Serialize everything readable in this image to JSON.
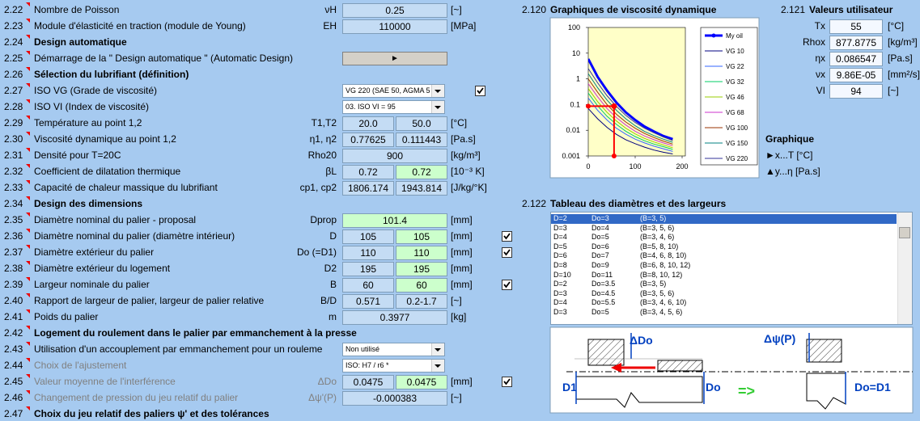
{
  "form": {
    "rows": [
      {
        "num": "2.22",
        "label": "Nombre de Poisson",
        "symbol": "νH",
        "values": [
          "0.25"
        ],
        "unit": "[~]"
      },
      {
        "num": "2.23",
        "label": "Module d'élasticité en traction (module de Young)",
        "symbol": "EH",
        "values": [
          "110000"
        ],
        "unit": "[MPa]"
      },
      {
        "num": "2.24",
        "label": "Design automatique",
        "bold": true
      },
      {
        "num": "2.25",
        "label": "Démarrage de la \" Design automatique \" (Automatic Design)",
        "button": "►"
      },
      {
        "num": "2.26",
        "label": "Sélection du lubrifiant (définition)",
        "bold": true
      },
      {
        "num": "2.27",
        "label": "ISO VG (Grade de viscosité)",
        "dropdown": "VG 220 (SAE 50, AGMA 5",
        "checked": true
      },
      {
        "num": "2.28",
        "label": "ISO VI (Index de viscosité)",
        "dropdown": "03. ISO VI = 95"
      },
      {
        "num": "2.29",
        "label": "Température au point 1,2",
        "symbol": "T1,T2",
        "values": [
          "20.0",
          "50.0"
        ],
        "unit": "[°C]"
      },
      {
        "num": "2.30",
        "label": "Viscosité dynamique au point 1,2",
        "symbol": "η1, η2",
        "values": [
          "0.77625",
          "0.111443"
        ],
        "unit": "[Pa.s]"
      },
      {
        "num": "2.31",
        "label": "Densité pour T=20C",
        "symbol": "Rho20",
        "values": [
          "900"
        ],
        "unit": "[kg/m³]"
      },
      {
        "num": "2.32",
        "label": "Coefficient de dilatation thermique",
        "symbol": "βL",
        "values": [
          "0.72",
          "0.72"
        ],
        "input_cells": [
          1
        ],
        "unit": "[10⁻³ K]"
      },
      {
        "num": "2.33",
        "label": "Capacité de chaleur massique du lubrifiant",
        "symbol": "cp1, cp2",
        "values": [
          "1806.174",
          "1943.814"
        ],
        "unit": "[J/kg/°K]"
      },
      {
        "num": "2.34",
        "label": "Design des dimensions",
        "bold": true
      },
      {
        "num": "2.35",
        "label": "Diamètre nominal du palier - proposal",
        "symbol": "Dprop",
        "values": [
          "101.4"
        ],
        "input_cells": [
          0
        ],
        "unit": "[mm]"
      },
      {
        "num": "2.36",
        "label": "Diamètre nominal du palier (diamètre intérieur)",
        "symbol": "D",
        "values": [
          "105",
          "105"
        ],
        "input_cells": [
          1
        ],
        "unit": "[mm]",
        "checked": true
      },
      {
        "num": "2.37",
        "label": "Diamètre extérieur du palier",
        "symbol": "Do (=D1)",
        "values": [
          "110",
          "110"
        ],
        "input_cells": [
          1
        ],
        "unit": "[mm]",
        "checked": true
      },
      {
        "num": "2.38",
        "label": "Diamètre extérieur du logement",
        "symbol": "D2",
        "values": [
          "195",
          "195"
        ],
        "input_cells": [
          1
        ],
        "unit": "[mm]"
      },
      {
        "num": "2.39",
        "label": "Largeur nominale du palier",
        "symbol": "B",
        "values": [
          "60",
          "60"
        ],
        "input_cells": [
          1
        ],
        "unit": "[mm]",
        "checked": true
      },
      {
        "num": "2.40",
        "label": "Rapport de largeur de palier, largeur de palier relative",
        "symbol": "B/D",
        "values": [
          "0.571",
          "0.2-1.7"
        ],
        "unit": "[~]"
      },
      {
        "num": "2.41",
        "label": "Poids du palier",
        "symbol": "m",
        "values": [
          "0.3977"
        ],
        "unit": "[kg]"
      },
      {
        "num": "2.42",
        "label": "Logement du roulement dans le palier par emmanchement à la presse",
        "bold": true
      },
      {
        "num": "2.43",
        "label": "Utilisation d'un accouplement par emmanchement pour un rouleme",
        "dropdown": "Non utilisé"
      },
      {
        "num": "2.44",
        "label": "Choix de l'ajustement",
        "disabled": true,
        "dropdown": "ISO: H7 / r6 *"
      },
      {
        "num": "2.45",
        "label": "Valeur moyenne de l'interférence",
        "disabled": true,
        "symbol": "ΔDo",
        "values": [
          "0.0475",
          "0.0475"
        ],
        "input_cells": [
          1
        ],
        "unit": "[mm]",
        "checked": true
      },
      {
        "num": "2.46",
        "label": "Changement de pression du jeu relatif du palier",
        "disabled": true,
        "symbol": "Δψ'(P)",
        "values": [
          "-0.000383"
        ],
        "unit": "[~]"
      },
      {
        "num": "2.47",
        "label": "Choix du jeu relatif des paliers ψ' et des tolérances",
        "bold": true
      }
    ]
  },
  "chart_data": {
    "type": "line",
    "num": "2.120",
    "title": "Graphiques de viscosité dynamique",
    "log_y": true,
    "x": [
      0,
      20,
      40,
      60,
      80,
      100,
      120,
      140,
      160,
      180
    ],
    "xlim": [
      0,
      200
    ],
    "xticks": [
      0,
      100,
      200
    ],
    "ylim": [
      0.001,
      100
    ],
    "yticks": [
      100,
      10,
      1,
      0.1,
      0.01,
      0.001
    ],
    "series": [
      {
        "name": "My oil",
        "color": "#0000ff",
        "values": [
          6,
          1.2,
          0.35,
          0.12,
          0.05,
          0.025,
          0.014,
          0.009,
          0.006,
          0.0045
        ]
      },
      {
        "name": "VG 10",
        "color": "#000080",
        "values": [
          0.07,
          0.028,
          0.013,
          0.0069,
          0.0043,
          0.003,
          0.0022,
          0.0017,
          0.0014,
          0.0012
        ]
      },
      {
        "name": "VG 22",
        "color": "#3366ff",
        "values": [
          0.18,
          0.06,
          0.025,
          0.012,
          0.007,
          0.0045,
          0.0032,
          0.0024,
          0.0019,
          0.0015
        ]
      },
      {
        "name": "VG 32",
        "color": "#00cc66",
        "values": [
          0.28,
          0.09,
          0.035,
          0.017,
          0.0092,
          0.0057,
          0.0039,
          0.0029,
          0.0023,
          0.0018
        ]
      },
      {
        "name": "VG 46",
        "color": "#99cc00",
        "values": [
          0.42,
          0.13,
          0.05,
          0.023,
          0.012,
          0.0072,
          0.0048,
          0.0035,
          0.0027,
          0.0021
        ]
      },
      {
        "name": "VG 68",
        "color": "#cc33cc",
        "values": [
          0.65,
          0.2,
          0.07,
          0.031,
          0.016,
          0.0092,
          0.006,
          0.0043,
          0.0032,
          0.0025
        ]
      },
      {
        "name": "VG 100",
        "color": "#993300",
        "values": [
          1.0,
          0.3,
          0.1,
          0.042,
          0.021,
          0.012,
          0.0075,
          0.0052,
          0.0038,
          0.0029
        ]
      },
      {
        "name": "VG 150",
        "color": "#008080",
        "values": [
          1.6,
          0.45,
          0.15,
          0.06,
          0.028,
          0.015,
          0.009,
          0.0062,
          0.0045,
          0.0034
        ]
      },
      {
        "name": "VG 220",
        "color": "#333399",
        "values": [
          2.5,
          0.7,
          0.22,
          0.085,
          0.038,
          0.02,
          0.012,
          0.008,
          0.0055,
          0.004
        ]
      }
    ],
    "marker_color": "#ff0000"
  },
  "user_values": {
    "num": "2.121",
    "title": "Valeurs utilisateur",
    "rows": [
      {
        "symbol": "Tx",
        "value": 55,
        "unit": "[°C]"
      },
      {
        "symbol": "Rhox",
        "value": 877.8775,
        "unit": "[kg/m³]"
      },
      {
        "symbol": "ηx",
        "value": 0.086547,
        "unit": "[Pa.s]"
      },
      {
        "symbol": "νx",
        "value": "9.86E-05",
        "unit": "[mm²/s]"
      },
      {
        "symbol": "VI",
        "value": 94,
        "unit": "[~]"
      }
    ]
  },
  "graph_axes": {
    "title": "Graphique",
    "x": "►x...T [°C]",
    "y": "▲y...η [Pa.s]"
  },
  "table": {
    "num": "2.122",
    "title": "Tableau des diamètres et des largeurs",
    "selected": 0,
    "rows": [
      [
        "D=2",
        "Do=3",
        "(B=3, 5)"
      ],
      [
        "D=3",
        "Do=4",
        "(B=3, 5, 6)"
      ],
      [
        "D=4",
        "Do=5",
        "(B=3, 4, 6)"
      ],
      [
        "D=5",
        "Do=6",
        "(B=5, 8, 10)"
      ],
      [
        "D=6",
        "Do=7",
        "(B=4, 6, 8, 10)"
      ],
      [
        "D=8",
        "Do=9",
        "(B=6, 8, 10, 12)"
      ],
      [
        "D=10",
        "Do=11",
        "(B=8, 10, 12)"
      ],
      [
        "D=2",
        "Do=3.5",
        "(B=3, 5)"
      ],
      [
        "D=3",
        "Do=4.5",
        "(B=3, 5, 6)"
      ],
      [
        "D=4",
        "Do=5.5",
        "(B=3, 4, 6, 10)"
      ],
      [
        "D=3",
        "Do=5",
        "(B=3, 4, 5, 6)"
      ]
    ]
  },
  "diagram": {
    "delta_do": "ΔDo",
    "delta_psi": "Δψ(P)",
    "d1": "D1",
    "do": "Do",
    "arrow": "=>",
    "do_d1": "Do=D1"
  }
}
